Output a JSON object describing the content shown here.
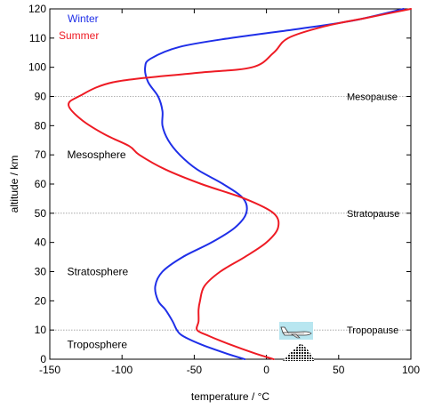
{
  "chart_data": {
    "type": "line",
    "xlabel": "temperature / °C",
    "ylabel": "altitude / km",
    "xlim": [
      -150,
      100
    ],
    "ylim": [
      0,
      120
    ],
    "x_ticks": [
      -150,
      -100,
      -50,
      0,
      50,
      100
    ],
    "y_ticks": [
      0,
      10,
      20,
      30,
      40,
      50,
      60,
      70,
      80,
      90,
      100,
      110,
      120
    ],
    "legend_position": "top-left",
    "grid": false,
    "series": [
      {
        "name": "Winter",
        "color": "#1f2fe8",
        "points": [
          [
            -15,
            0
          ],
          [
            -28,
            2
          ],
          [
            -45,
            5
          ],
          [
            -58,
            8
          ],
          [
            -62,
            10
          ],
          [
            -65,
            13
          ],
          [
            -70,
            17
          ],
          [
            -75,
            20
          ],
          [
            -77,
            25
          ],
          [
            -72,
            30
          ],
          [
            -58,
            35
          ],
          [
            -38,
            40
          ],
          [
            -22,
            45
          ],
          [
            -14,
            50
          ],
          [
            -16,
            55
          ],
          [
            -30,
            60
          ],
          [
            -48,
            65
          ],
          [
            -60,
            70
          ],
          [
            -68,
            75
          ],
          [
            -72,
            80
          ],
          [
            -72,
            85
          ],
          [
            -75,
            90
          ],
          [
            -82,
            95
          ],
          [
            -84,
            100
          ],
          [
            -80,
            103
          ],
          [
            -60,
            107
          ],
          [
            -25,
            110
          ],
          [
            20,
            113
          ],
          [
            60,
            116
          ],
          [
            95,
            120
          ]
        ]
      },
      {
        "name": "Summer",
        "color": "#ee1b24",
        "points": [
          [
            5,
            0
          ],
          [
            -8,
            2
          ],
          [
            -25,
            5
          ],
          [
            -40,
            8
          ],
          [
            -48,
            10
          ],
          [
            -47,
            13
          ],
          [
            -47,
            17
          ],
          [
            -46,
            20
          ],
          [
            -43,
            25
          ],
          [
            -32,
            30
          ],
          [
            -15,
            35
          ],
          [
            0,
            40
          ],
          [
            8,
            45
          ],
          [
            5,
            50
          ],
          [
            -15,
            55
          ],
          [
            -45,
            60
          ],
          [
            -70,
            65
          ],
          [
            -88,
            70
          ],
          [
            -95,
            73
          ],
          [
            -112,
            77
          ],
          [
            -128,
            82
          ],
          [
            -137,
            87
          ],
          [
            -130,
            90
          ],
          [
            -105,
            95
          ],
          [
            -50,
            98
          ],
          [
            -10,
            100
          ],
          [
            5,
            105
          ],
          [
            15,
            110
          ],
          [
            40,
            114
          ],
          [
            70,
            117
          ],
          [
            100,
            120
          ]
        ]
      }
    ],
    "reference_lines": [
      {
        "y": 10,
        "label": "Tropopause"
      },
      {
        "y": 50,
        "label": "Stratopause"
      },
      {
        "y": 90,
        "label": "Mesopause"
      }
    ],
    "layer_labels": [
      {
        "text": "Troposphere",
        "x": -138,
        "y": 5
      },
      {
        "text": "Stratosphere",
        "x": -138,
        "y": 30
      },
      {
        "text": "Mesosphere",
        "x": -138,
        "y": 70
      }
    ]
  },
  "icons": {
    "airplane": "airplane-icon",
    "mountain": "mountain-icon",
    "airplane_backdrop_color": "#b8e6f0"
  }
}
